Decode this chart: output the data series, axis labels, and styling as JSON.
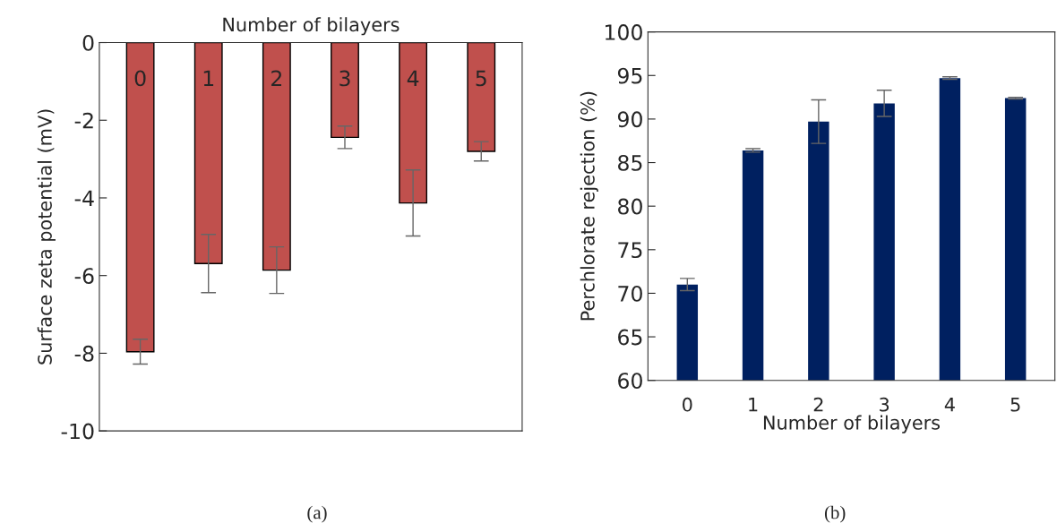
{
  "chart_data": [
    {
      "type": "bar",
      "xlabel": "Number of bilayers",
      "ylabel": "Surface zeta potential (mV)",
      "categories": [
        "0",
        "1",
        "2",
        "3",
        "4",
        "5"
      ],
      "series": [
        {
          "color": "#c0504d",
          "values": [
            -7.96,
            -5.69,
            -5.86,
            -2.44,
            -4.13,
            -2.8
          ],
          "errors": [
            0.32,
            0.75,
            0.6,
            0.29,
            0.85,
            0.25
          ]
        }
      ],
      "ylim": [
        -10,
        0
      ],
      "yticks": [
        -10,
        -8,
        -6,
        -4,
        -2,
        0
      ],
      "grid": false,
      "legend": false,
      "annotations": [
        "(a)"
      ]
    },
    {
      "type": "bar",
      "xlabel": "Number of bilayers",
      "ylabel": "Perchlorate rejection (%)",
      "categories": [
        "0",
        "1",
        "2",
        "3",
        "4",
        "5"
      ],
      "series": [
        {
          "color": "#002060",
          "values": [
            71.0,
            86.4,
            89.7,
            91.8,
            94.7,
            92.4
          ],
          "errors": [
            0.7,
            0.2,
            2.5,
            1.5,
            0.15,
            0.1
          ]
        }
      ],
      "ylim": [
        60,
        100
      ],
      "yticks": [
        60,
        65,
        70,
        75,
        80,
        85,
        90,
        95,
        100
      ],
      "grid": false,
      "legend": false,
      "annotations": [
        "(b)"
      ]
    }
  ]
}
